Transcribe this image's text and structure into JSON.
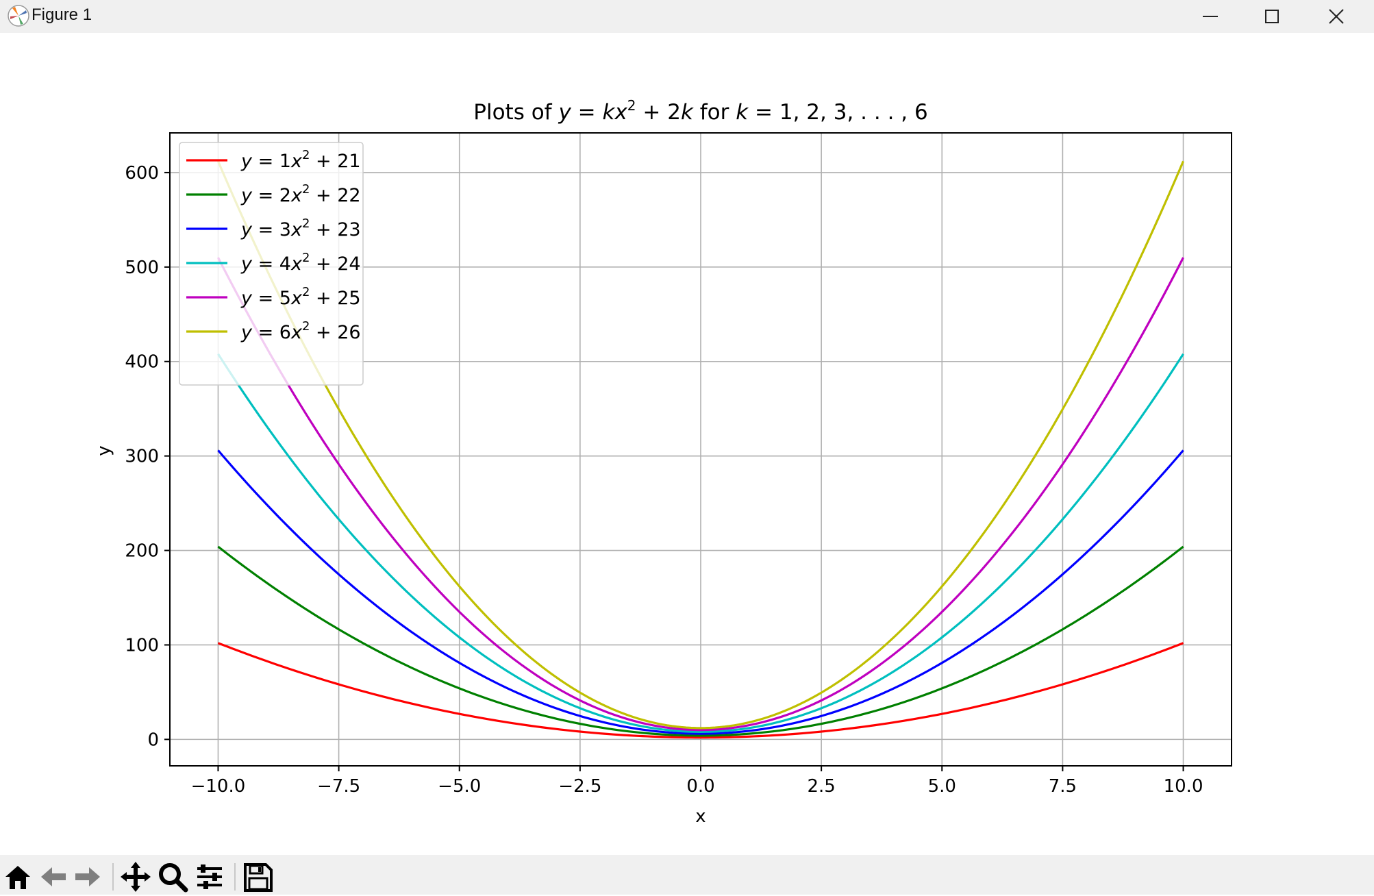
{
  "window": {
    "title": "Figure 1",
    "controls": [
      "minimize-icon",
      "maximize-icon",
      "close-icon"
    ]
  },
  "toolbar": {
    "buttons": [
      "home-icon",
      "back-arrow-icon",
      "forward-arrow-icon",
      "pan-icon",
      "zoom-icon",
      "configure-subplots-icon",
      "save-icon"
    ]
  },
  "chart_data": {
    "type": "line",
    "title_parts": {
      "prefix": "Plots of ",
      "expr_y": "y",
      "expr_eq": " = ",
      "expr_k": "k",
      "expr_x": "x",
      "expr_exp": "2",
      "expr_plus": " + 2",
      "expr_k2": "k",
      "middle": " for ",
      "k_range": " = 1, 2, 3, . . . , 6"
    },
    "xlabel": "x",
    "ylabel": "y",
    "xlim": [
      -11,
      11
    ],
    "ylim": [
      -28,
      642
    ],
    "xticks": [
      -10.0,
      -7.5,
      -5.0,
      -2.5,
      0.0,
      2.5,
      5.0,
      7.5,
      10.0
    ],
    "xtick_labels": [
      "−10.0",
      "−7.5",
      "−5.0",
      "−2.5",
      "0.0",
      "2.5",
      "5.0",
      "7.5",
      "10.0"
    ],
    "yticks": [
      0,
      100,
      200,
      300,
      400,
      500,
      600
    ],
    "ytick_labels": [
      "0",
      "100",
      "200",
      "300",
      "400",
      "500",
      "600"
    ],
    "grid": true,
    "legend_position": "upper-left",
    "x_range": [
      -10,
      10
    ],
    "series": [
      {
        "name": "y = 1x² + 21",
        "k": 1,
        "legend_coef": "1",
        "legend_const": "21",
        "color": "#ff0000"
      },
      {
        "name": "y = 2x² + 22",
        "k": 2,
        "legend_coef": "2",
        "legend_const": "22",
        "color": "#008000"
      },
      {
        "name": "y = 3x² + 23",
        "k": 3,
        "legend_coef": "3",
        "legend_const": "23",
        "color": "#0000ff"
      },
      {
        "name": "y = 4x² + 24",
        "k": 4,
        "legend_coef": "4",
        "legend_const": "24",
        "color": "#00bfbf"
      },
      {
        "name": "y = 5x² + 25",
        "k": 5,
        "legend_coef": "5",
        "legend_const": "25",
        "color": "#bf00bf"
      },
      {
        "name": "y = 6x² + 26",
        "k": 6,
        "legend_coef": "6",
        "legend_const": "26",
        "color": "#bfbf00"
      }
    ]
  }
}
